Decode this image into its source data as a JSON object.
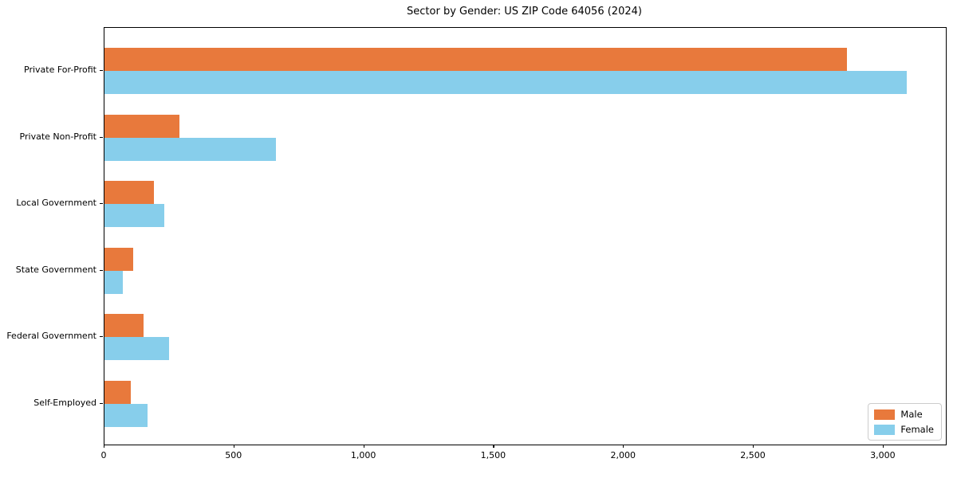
{
  "title": "Sector by Gender: US ZIP Code 64056 (2024)",
  "chart_data": {
    "type": "bar",
    "orientation": "horizontal",
    "title": "Sector by Gender: US ZIP Code 64056 (2024)",
    "categories": [
      "Private For-Profit",
      "Private Non-Profit",
      "Local Government",
      "State Government",
      "Federal Government",
      "Self-Employed"
    ],
    "series": [
      {
        "name": "Male",
        "color": "#e8793c",
        "values": [
          2860,
          290,
          190,
          110,
          150,
          100
        ]
      },
      {
        "name": "Female",
        "color": "#87ceeb",
        "values": [
          3090,
          660,
          230,
          70,
          250,
          165
        ]
      }
    ],
    "xlabel": "",
    "ylabel": "",
    "xlim": [
      0,
      3240
    ],
    "xticks": [
      0,
      500,
      1000,
      1500,
      2000,
      2500,
      3000
    ],
    "xtick_labels": [
      "0",
      "500",
      "1,000",
      "1,500",
      "2,000",
      "2,500",
      "3,000"
    ],
    "legend_position": "lower right",
    "grid": false,
    "frame": true
  }
}
